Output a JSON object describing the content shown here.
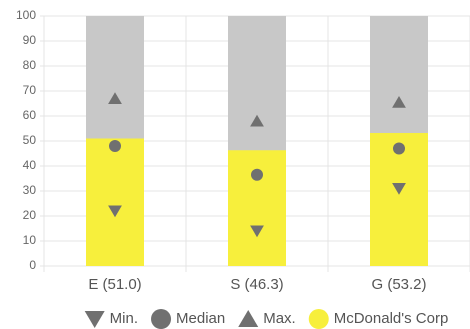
{
  "chart_data": {
    "type": "bar",
    "categories": [
      "E (51.0)",
      "S (46.3)",
      "G (53.2)"
    ],
    "series": [
      {
        "name": "Min.",
        "marker": "triangle-down",
        "color": "#707070",
        "values": [
          22,
          14,
          31
        ]
      },
      {
        "name": "Median",
        "marker": "circle",
        "color": "#707070",
        "values": [
          48,
          36.5,
          47
        ]
      },
      {
        "name": "Max.",
        "marker": "triangle-up",
        "color": "#707070",
        "values": [
          67,
          58,
          65.5
        ]
      },
      {
        "name": "McDonald's Corp",
        "marker": "bar",
        "color": "#f7ef3c",
        "values": [
          51.0,
          46.3,
          53.2
        ]
      }
    ],
    "background_color": "#c8c8c8",
    "ylim": [
      0,
      100
    ],
    "yticks": [
      0,
      10,
      20,
      30,
      40,
      50,
      60,
      70,
      80,
      90,
      100
    ],
    "grid": true
  }
}
